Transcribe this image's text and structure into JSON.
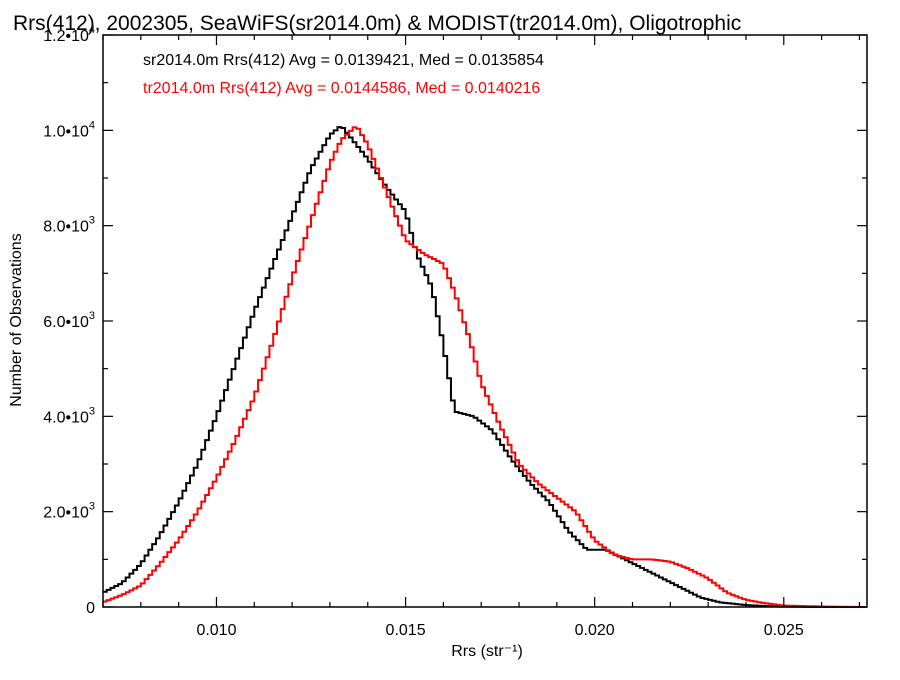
{
  "chart_data": {
    "type": "line",
    "title": "Rrs(412), 2002305, SeaWiFS(sr2014.0m) & MODIST(tr2014.0m), Oligotrophic",
    "xlabel": "Rrs (str⁻¹)",
    "ylabel": "Number of Observations",
    "xlim": [
      0.007,
      0.0272
    ],
    "ylim": [
      0,
      12000
    ],
    "x_ticks": [
      {
        "value": 0.01,
        "label": "0.010"
      },
      {
        "value": 0.015,
        "label": "0.015"
      },
      {
        "value": 0.02,
        "label": "0.020"
      },
      {
        "value": 0.025,
        "label": "0.025"
      }
    ],
    "y_ticks": [
      {
        "value": 0,
        "mantissa": "0",
        "exp": ""
      },
      {
        "value": 2000,
        "mantissa": "2.0•10",
        "exp": "3"
      },
      {
        "value": 4000,
        "mantissa": "4.0•10",
        "exp": "3"
      },
      {
        "value": 6000,
        "mantissa": "6.0•10",
        "exp": "3"
      },
      {
        "value": 8000,
        "mantissa": "8.0•10",
        "exp": "3"
      },
      {
        "value": 10000,
        "mantissa": "1.0•10",
        "exp": "4"
      },
      {
        "value": 12000,
        "mantissa": "1.2•10",
        "exp": "4"
      }
    ],
    "legend": [
      {
        "text": "sr2014.0m Rrs(412) Avg = 0.0139421, Med = 0.0135854",
        "color": "#000000"
      },
      {
        "text": "tr2014.0m Rrs(412) Avg = 0.0144586, Med = 0.0140216",
        "color": "#ff0000"
      }
    ],
    "series": [
      {
        "name": "sr2014.0m",
        "color": "#000000",
        "style": "step",
        "points": [
          [
            0.007,
            300
          ],
          [
            0.0075,
            500
          ],
          [
            0.008,
            900
          ],
          [
            0.0085,
            1500
          ],
          [
            0.009,
            2200
          ],
          [
            0.0095,
            3000
          ],
          [
            0.01,
            4000
          ],
          [
            0.0105,
            5100
          ],
          [
            0.011,
            6200
          ],
          [
            0.0115,
            7200
          ],
          [
            0.012,
            8200
          ],
          [
            0.0125,
            9200
          ],
          [
            0.013,
            9900
          ],
          [
            0.0133,
            10100
          ],
          [
            0.0135,
            9900
          ],
          [
            0.014,
            9400
          ],
          [
            0.0145,
            8800
          ],
          [
            0.015,
            8300
          ],
          [
            0.0153,
            7400
          ],
          [
            0.0157,
            6700
          ],
          [
            0.016,
            5500
          ],
          [
            0.0163,
            4100
          ],
          [
            0.0168,
            4000
          ],
          [
            0.0173,
            3700
          ],
          [
            0.0178,
            3100
          ],
          [
            0.0183,
            2600
          ],
          [
            0.0188,
            2200
          ],
          [
            0.0193,
            1600
          ],
          [
            0.0198,
            1200
          ],
          [
            0.0203,
            1200
          ],
          [
            0.0208,
            1000
          ],
          [
            0.0213,
            800
          ],
          [
            0.0218,
            600
          ],
          [
            0.0223,
            400
          ],
          [
            0.0228,
            200
          ],
          [
            0.0233,
            100
          ],
          [
            0.024,
            40
          ],
          [
            0.0248,
            10
          ],
          [
            0.026,
            0
          ],
          [
            0.0272,
            0
          ]
        ]
      },
      {
        "name": "tr2014.0m",
        "color": "#ff0000",
        "style": "step",
        "points": [
          [
            0.007,
            100
          ],
          [
            0.0075,
            250
          ],
          [
            0.008,
            450
          ],
          [
            0.0085,
            900
          ],
          [
            0.009,
            1400
          ],
          [
            0.0095,
            2000
          ],
          [
            0.01,
            2700
          ],
          [
            0.0105,
            3500
          ],
          [
            0.011,
            4400
          ],
          [
            0.0115,
            5600
          ],
          [
            0.012,
            6900
          ],
          [
            0.0125,
            8100
          ],
          [
            0.013,
            9300
          ],
          [
            0.0133,
            9800
          ],
          [
            0.0137,
            10100
          ],
          [
            0.014,
            9700
          ],
          [
            0.0145,
            8700
          ],
          [
            0.015,
            7700
          ],
          [
            0.0155,
            7400
          ],
          [
            0.016,
            7200
          ],
          [
            0.0163,
            6600
          ],
          [
            0.0167,
            5600
          ],
          [
            0.017,
            4700
          ],
          [
            0.0175,
            3800
          ],
          [
            0.018,
            3000
          ],
          [
            0.0185,
            2600
          ],
          [
            0.019,
            2300
          ],
          [
            0.0195,
            2000
          ],
          [
            0.02,
            1400
          ],
          [
            0.0205,
            1100
          ],
          [
            0.021,
            1000
          ],
          [
            0.0215,
            1000
          ],
          [
            0.022,
            950
          ],
          [
            0.0225,
            800
          ],
          [
            0.023,
            600
          ],
          [
            0.0235,
            300
          ],
          [
            0.024,
            150
          ],
          [
            0.0245,
            80
          ],
          [
            0.025,
            30
          ],
          [
            0.026,
            10
          ],
          [
            0.0272,
            0
          ]
        ]
      }
    ]
  }
}
